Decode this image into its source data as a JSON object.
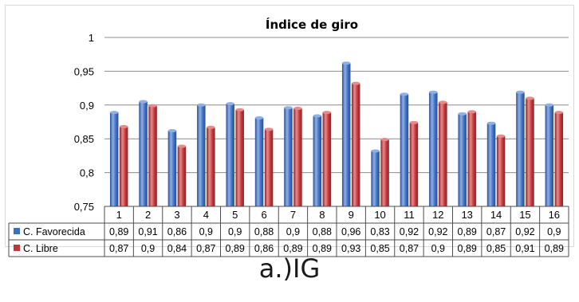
{
  "caption": "a.)IG",
  "chart_data": {
    "type": "bar",
    "title": "Índice de giro",
    "xlabel": "",
    "ylabel": "",
    "ylim": [
      0.75,
      1
    ],
    "yticks": [
      "0,75",
      "0,8",
      "0,85",
      "0,9",
      "0,95",
      "1"
    ],
    "ytick_values": [
      0.75,
      0.8,
      0.85,
      0.9,
      0.95,
      1
    ],
    "grid": true,
    "legend": "data-table",
    "categories": [
      "1",
      "2",
      "3",
      "4",
      "5",
      "6",
      "7",
      "8",
      "9",
      "10",
      "11",
      "12",
      "13",
      "14",
      "15",
      "16"
    ],
    "series": [
      {
        "name": "C. Favorecida",
        "color": "#3e6fc3",
        "values": [
          0.889,
          0.905,
          0.862,
          0.9,
          0.902,
          0.881,
          0.896,
          0.884,
          0.962,
          0.832,
          0.916,
          0.919,
          0.887,
          0.873,
          0.919,
          0.9
        ],
        "labels": [
          "0,89",
          "0,91",
          "0,86",
          "0,9",
          "0,9",
          "0,88",
          "0,9",
          "0,88",
          "0,96",
          "0,83",
          "0,92",
          "0,92",
          "0,89",
          "0,87",
          "0,92",
          "0,9"
        ]
      },
      {
        "name": "C. Libre",
        "color": "#c0363a",
        "values": [
          0.868,
          0.899,
          0.839,
          0.867,
          0.893,
          0.864,
          0.895,
          0.889,
          0.932,
          0.849,
          0.874,
          0.904,
          0.89,
          0.854,
          0.91,
          0.889
        ],
        "labels": [
          "0,87",
          "0,9",
          "0,84",
          "0,87",
          "0,89",
          "0,86",
          "0,89",
          "0,89",
          "0,93",
          "0,85",
          "0,87",
          "0,9",
          "0,89",
          "0,85",
          "0,91",
          "0,89"
        ]
      }
    ]
  }
}
